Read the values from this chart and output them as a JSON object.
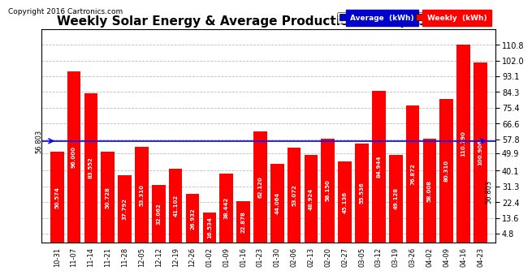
{
  "title": "Weekly Solar Energy & Average Production Tue Apr 26 19:33",
  "copyright": "Copyright 2016 Cartronics.com",
  "categories": [
    "10-31",
    "11-07",
    "11-14",
    "11-21",
    "11-28",
    "12-05",
    "12-12",
    "12-19",
    "12-26",
    "01-02",
    "01-09",
    "01-16",
    "01-23",
    "01-30",
    "02-06",
    "02-13",
    "02-20",
    "02-27",
    "03-05",
    "03-12",
    "03-19",
    "03-26",
    "04-02",
    "04-09",
    "04-16",
    "04-23"
  ],
  "values": [
    50.574,
    96.0,
    83.552,
    50.728,
    37.792,
    53.31,
    32.062,
    41.102,
    26.932,
    16.534,
    38.442,
    22.878,
    62.12,
    44.064,
    53.072,
    48.924,
    58.15,
    45.136,
    55.536,
    84.944,
    49.128,
    76.872,
    58.008,
    80.31,
    110.79,
    100.906
  ],
  "average": 56.803,
  "bar_color": "#ff0000",
  "average_line_color": "#0000ff",
  "bar_label_color": "#ffffff",
  "background_color": "#ffffff",
  "plot_bg_color": "#ffffff",
  "grid_color": "#bbbbbb",
  "ylim": [
    0,
    119.6
  ],
  "yticks": [
    4.8,
    13.6,
    22.4,
    31.3,
    40.1,
    49.9,
    57.8,
    66.6,
    75.4,
    84.3,
    93.1,
    102.0,
    110.8
  ],
  "avg_label": "56.803",
  "title_fontsize": 11,
  "bar_label_fontsize": 5.0,
  "xlabel_fontsize": 6.0,
  "ytick_fontsize": 7,
  "copyright_fontsize": 6.5,
  "legend_avg_color": "#0000cc",
  "legend_weekly_color": "#ff0000",
  "legend_fontsize": 6.5
}
